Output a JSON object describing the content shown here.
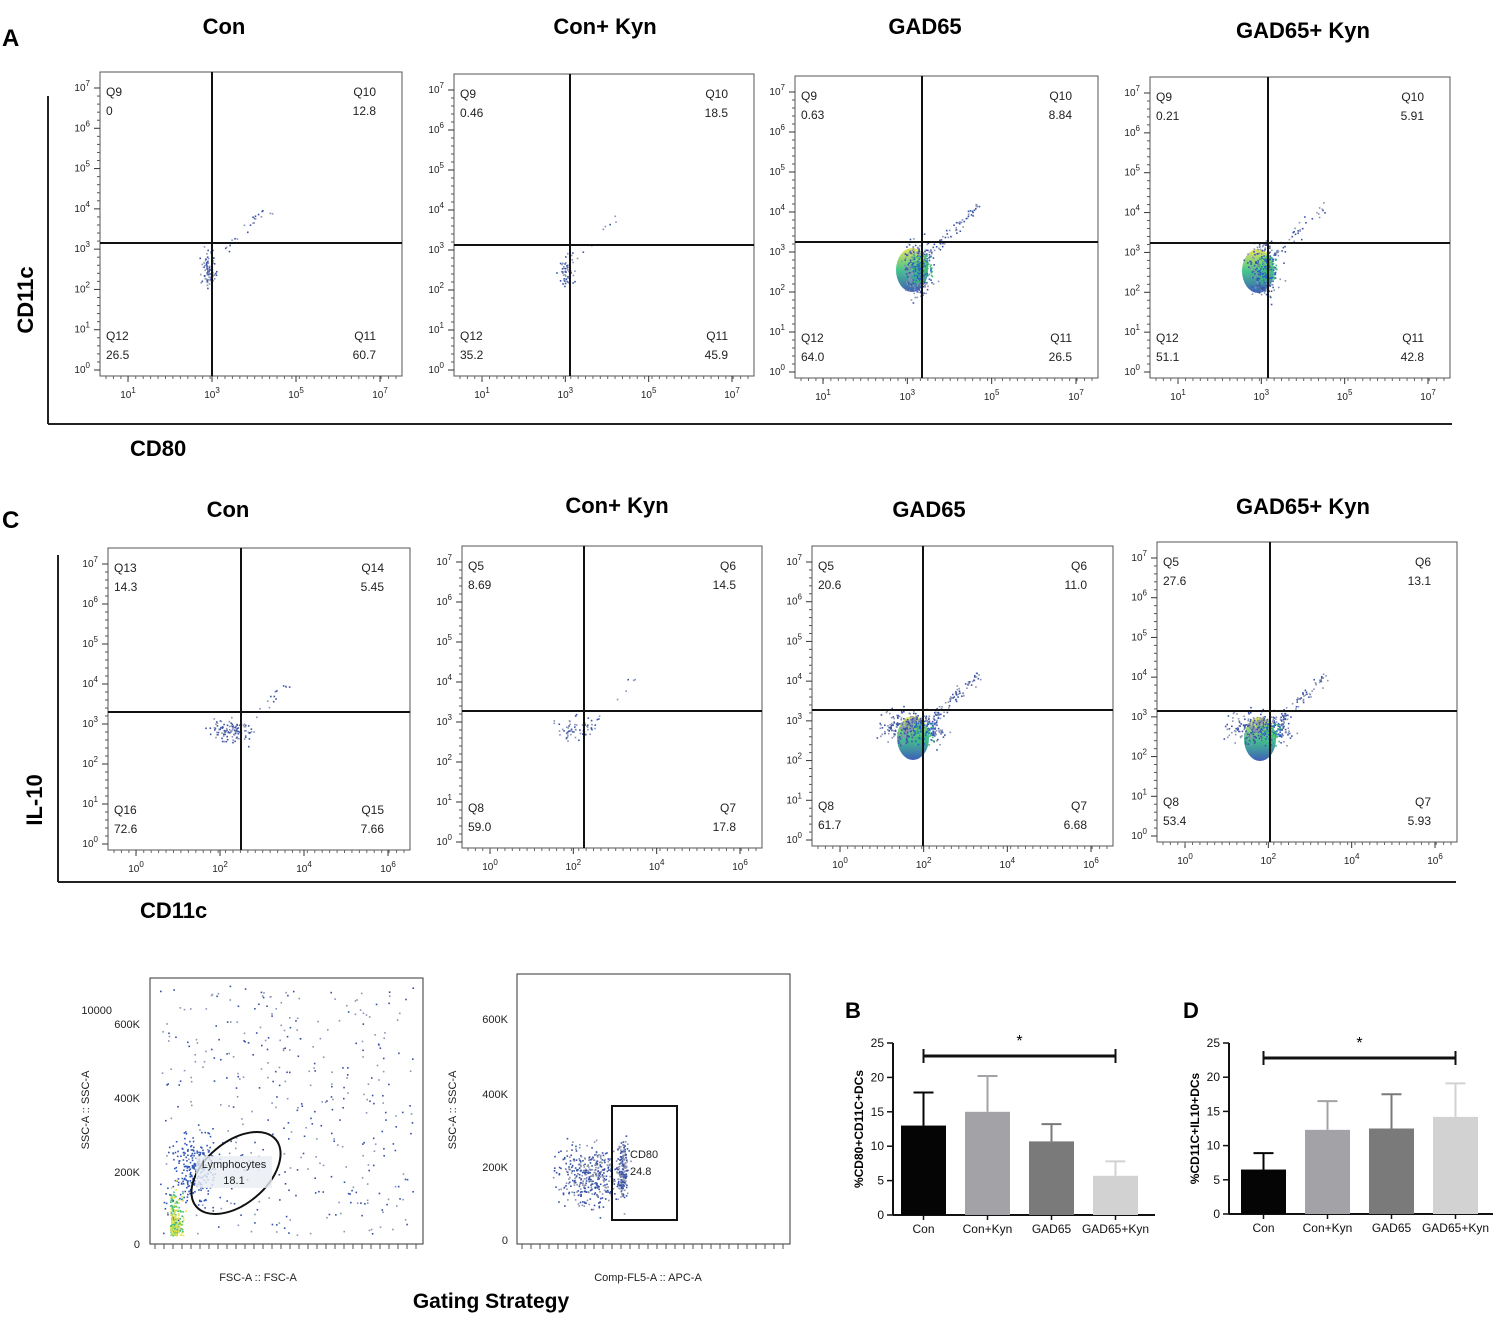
{
  "panel_A": {
    "letter": "A",
    "x_axis_label": "CD80",
    "y_axis_label": "CD11c",
    "y_tick_labels": [
      "10^0",
      "10^1",
      "10^2",
      "10^3",
      "10^4",
      "10^5",
      "10^6",
      "10^7"
    ],
    "x_tick_labels": [
      "10^1",
      "10^3",
      "10^5",
      "10^7"
    ],
    "plots": [
      {
        "title": "Con",
        "quadrants": [
          {
            "name": "Q9",
            "value": "0"
          },
          {
            "name": "Q10",
            "value": "12.8"
          },
          {
            "name": "Q12",
            "value": "26.5"
          },
          {
            "name": "Q11",
            "value": "60.7"
          }
        ]
      },
      {
        "title": "Con+ Kyn",
        "quadrants": [
          {
            "name": "Q9",
            "value": "0.46"
          },
          {
            "name": "Q10",
            "value": "18.5"
          },
          {
            "name": "Q12",
            "value": "35.2"
          },
          {
            "name": "Q11",
            "value": "45.9"
          }
        ]
      },
      {
        "title": "GAD65",
        "quadrants": [
          {
            "name": "Q9",
            "value": "0.63"
          },
          {
            "name": "Q10",
            "value": "8.84"
          },
          {
            "name": "Q12",
            "value": "64.0"
          },
          {
            "name": "Q11",
            "value": "26.5"
          }
        ]
      },
      {
        "title": "GAD65+ Kyn",
        "quadrants": [
          {
            "name": "Q9",
            "value": "0.21"
          },
          {
            "name": "Q10",
            "value": "5.91"
          },
          {
            "name": "Q12",
            "value": "51.1"
          },
          {
            "name": "Q11",
            "value": "42.8"
          }
        ]
      }
    ]
  },
  "panel_C": {
    "letter": "C",
    "x_axis_label": "CD11c",
    "y_axis_label": "IL-10",
    "y_tick_labels": [
      "10^0",
      "10^1",
      "10^2",
      "10^3",
      "10^4",
      "10^5",
      "10^6",
      "10^7"
    ],
    "x_tick_labels": [
      "10^0",
      "10^2",
      "10^4",
      "10^6"
    ],
    "plots": [
      {
        "title": "Con",
        "quadrants": [
          {
            "name": "Q13",
            "value": "14.3"
          },
          {
            "name": "Q14",
            "value": "5.45"
          },
          {
            "name": "Q16",
            "value": "72.6"
          },
          {
            "name": "Q15",
            "value": "7.66"
          }
        ]
      },
      {
        "title": "Con+ Kyn",
        "quadrants": [
          {
            "name": "Q5",
            "value": "8.69"
          },
          {
            "name": "Q6",
            "value": "14.5"
          },
          {
            "name": "Q8",
            "value": "59.0"
          },
          {
            "name": "Q7",
            "value": "17.8"
          }
        ]
      },
      {
        "title": "GAD65",
        "quadrants": [
          {
            "name": "Q5",
            "value": "20.6"
          },
          {
            "name": "Q6",
            "value": "11.0"
          },
          {
            "name": "Q8",
            "value": "61.7"
          },
          {
            "name": "Q7",
            "value": "6.68"
          }
        ]
      },
      {
        "title": "GAD65+ Kyn",
        "quadrants": [
          {
            "name": "Q5",
            "value": "27.6"
          },
          {
            "name": "Q6",
            "value": "13.1"
          },
          {
            "name": "Q8",
            "value": "53.4"
          },
          {
            "name": "Q7",
            "value": "5.93"
          }
        ]
      }
    ]
  },
  "gating": {
    "title": "Gating Strategy",
    "plot1": {
      "x_label": "FSC-A :: FSC-A",
      "y_label": "SSC-A :: SSC-A",
      "top_tick": "10000",
      "y_ticks": [
        "0",
        "200K",
        "400K",
        "600K"
      ],
      "gate_name": "Lymphocytes",
      "gate_value": "18.1"
    },
    "plot2": {
      "x_label": "Comp-FL5-A :: APC-A",
      "y_label": "SSC-A :: SSC-A",
      "y_ticks": [
        "0",
        "200K",
        "400K",
        "600K"
      ],
      "gate_name": "CD80",
      "gate_value": "24.8"
    }
  },
  "chart_data": [
    {
      "type": "bar",
      "letter": "B",
      "categories": [
        "Con",
        "Con+Kyn",
        "GAD65",
        "GAD65+Kyn"
      ],
      "values": [
        13.0,
        15.0,
        10.7,
        5.7
      ],
      "errors": [
        4.8,
        5.2,
        2.5,
        2.1
      ],
      "colors": [
        "#050505",
        "#a3a3a7",
        "#7a7a7a",
        "#d2d2d2"
      ],
      "ylabel": "%CD80+CD11C+DCs",
      "ylim": [
        0,
        25
      ],
      "yticks": [
        0,
        5,
        10,
        15,
        20,
        25
      ],
      "significance": {
        "from": 0,
        "to": 3,
        "label": "*"
      }
    },
    {
      "type": "bar",
      "letter": "D",
      "categories": [
        "Con",
        "Con+Kyn",
        "GAD65",
        "GAD65+Kyn"
      ],
      "values": [
        6.5,
        12.3,
        12.5,
        14.2
      ],
      "errors": [
        2.4,
        4.2,
        5.0,
        4.9
      ],
      "colors": [
        "#050505",
        "#a3a3a7",
        "#7a7a7a",
        "#d2d2d2"
      ],
      "ylabel": "%CD11C+IL10+DCs",
      "ylim": [
        0,
        25
      ],
      "yticks": [
        0,
        5,
        10,
        15,
        20,
        25
      ],
      "significance": {
        "from": 0,
        "to": 3,
        "label": "*"
      }
    }
  ]
}
